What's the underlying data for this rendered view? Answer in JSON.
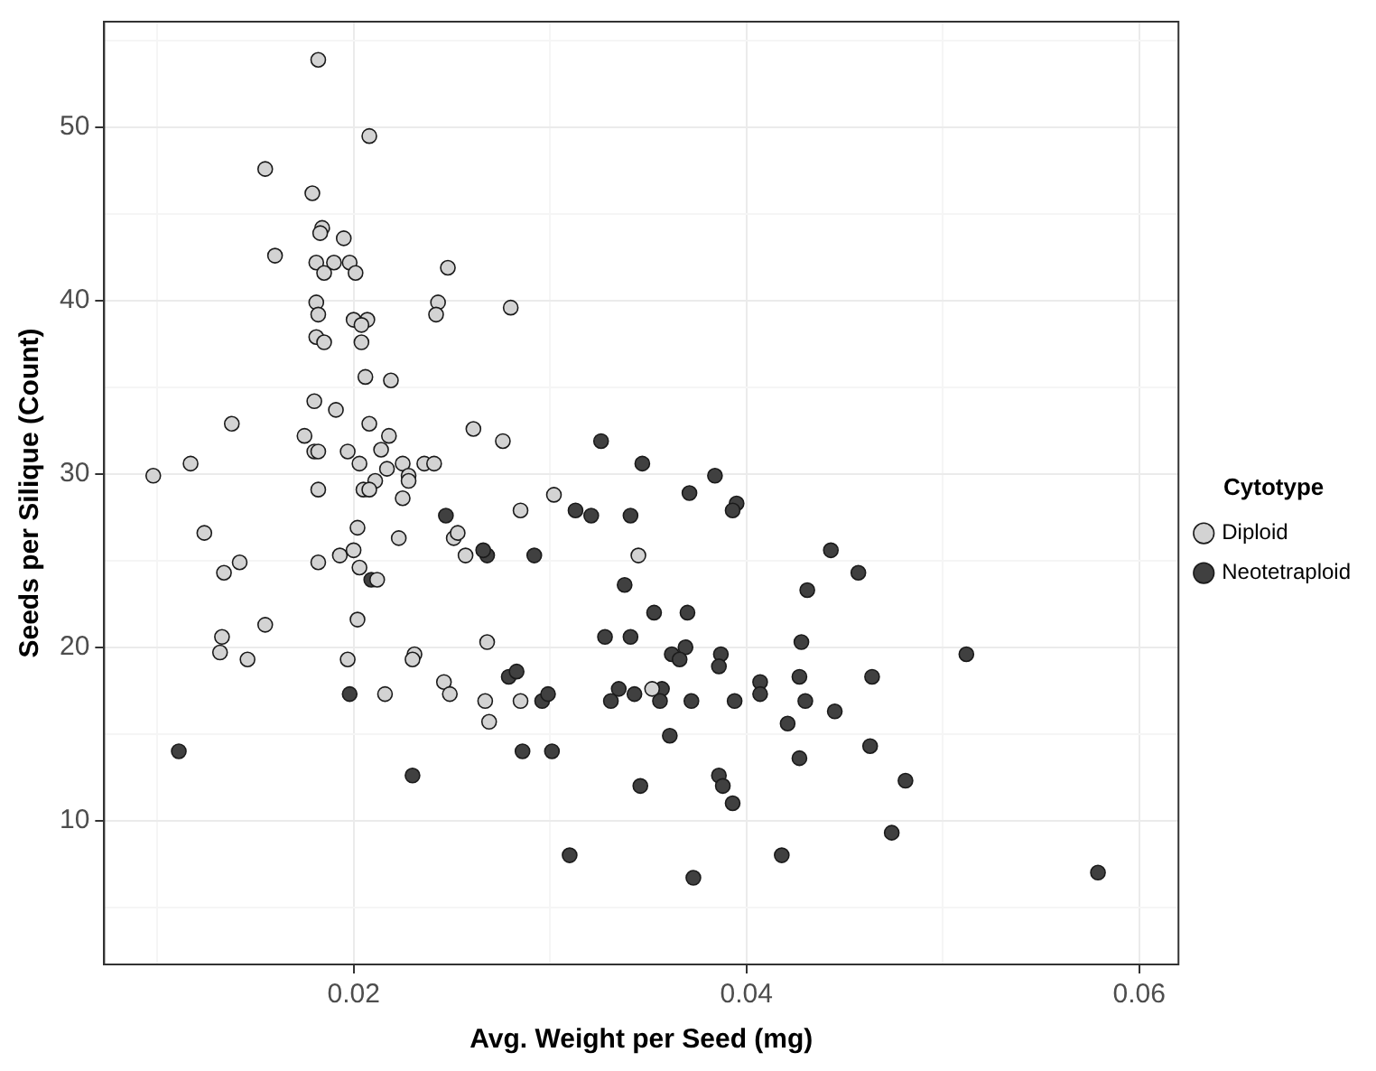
{
  "chart_data": {
    "type": "scatter",
    "xlabel": "Avg. Weight per Seed (mg)",
    "ylabel": "Seeds per Silique (Count)",
    "legend_title": "Cytotype",
    "legend": "right",
    "grid": true,
    "marker": "circle",
    "xlim": [
      0.0073,
      0.062
    ],
    "xticks": [
      {
        "value": 0.01,
        "label": null
      },
      0.02,
      {
        "value": 0.03,
        "label": null
      },
      0.04,
      {
        "value": 0.05,
        "label": null
      },
      0.06
    ],
    "ylim": [
      1.7,
      56.1
    ],
    "yticks": [
      {
        "value": 5,
        "label": null
      },
      10,
      {
        "value": 15,
        "label": null
      },
      20,
      {
        "value": 25,
        "label": null
      },
      30,
      {
        "value": 35,
        "label": null
      },
      40,
      {
        "value": 45,
        "label": null
      },
      50,
      {
        "value": 55,
        "label": null
      }
    ],
    "series": [
      {
        "name": "Diploid",
        "color": "#d3d3d3",
        "x": [
          0.0182,
          0.0208,
          0.0155,
          0.0179,
          0.0184,
          0.0183,
          0.0195,
          0.016,
          0.0181,
          0.019,
          0.0198,
          0.0185,
          0.0201,
          0.0248,
          0.0181,
          0.0243,
          0.0242,
          0.028,
          0.0182,
          0.02,
          0.0207,
          0.0204,
          0.0181,
          0.0185,
          0.0204,
          0.0206,
          0.0219,
          0.018,
          0.0191,
          0.0138,
          0.0208,
          0.0261,
          0.0175,
          0.0218,
          0.0276,
          0.018,
          0.0182,
          0.0197,
          0.0214,
          0.0203,
          0.0117,
          0.0225,
          0.0236,
          0.0241,
          0.0098,
          0.0217,
          0.0228,
          0.0228,
          0.0211,
          0.0302,
          0.0182,
          0.0205,
          0.0208,
          0.0225,
          0.0285,
          0.0124,
          0.0202,
          0.0223,
          0.0251,
          0.0253,
          0.0257,
          0.0142,
          0.0134,
          0.0182,
          0.0193,
          0.02,
          0.0203,
          0.0212,
          0.0202,
          0.0155,
          0.0133,
          0.0132,
          0.0146,
          0.0197,
          0.0231,
          0.023,
          0.0268,
          0.0246,
          0.0249,
          0.0216,
          0.0267,
          0.0285,
          0.0269,
          0.0345,
          0.0352
        ],
        "values": [
          53.9,
          49.5,
          47.6,
          46.2,
          44.2,
          43.9,
          43.6,
          42.6,
          42.2,
          42.2,
          42.2,
          41.6,
          41.6,
          41.9,
          39.9,
          39.9,
          39.2,
          39.6,
          39.2,
          38.9,
          38.9,
          38.6,
          37.9,
          37.6,
          37.6,
          35.6,
          35.4,
          34.2,
          33.7,
          32.9,
          32.9,
          32.6,
          32.2,
          32.2,
          31.9,
          31.3,
          31.3,
          31.3,
          31.4,
          30.6,
          30.6,
          30.6,
          30.6,
          30.6,
          29.9,
          30.3,
          29.9,
          29.6,
          29.6,
          28.8,
          29.1,
          29.1,
          29.1,
          28.6,
          27.9,
          26.6,
          26.9,
          26.3,
          26.3,
          26.6,
          25.3,
          24.9,
          24.3,
          24.9,
          25.3,
          25.6,
          24.6,
          23.9,
          21.6,
          21.3,
          20.6,
          19.7,
          19.3,
          19.3,
          19.6,
          19.3,
          20.3,
          18.0,
          17.3,
          17.3,
          16.9,
          16.9,
          15.7,
          25.3,
          17.6
        ]
      },
      {
        "name": "Neotetraploid",
        "color": "#404040",
        "x": [
          0.0209,
          0.0268,
          0.0266,
          0.0292,
          0.0247,
          0.0198,
          0.0279,
          0.0283,
          0.0296,
          0.0299,
          0.0111,
          0.0286,
          0.0301,
          0.023,
          0.0357,
          0.0326,
          0.0347,
          0.0384,
          0.0371,
          0.0395,
          0.0393,
          0.0313,
          0.0321,
          0.0341,
          0.0443,
          0.0457,
          0.0431,
          0.0338,
          0.0353,
          0.037,
          0.0328,
          0.0341,
          0.0428,
          0.0512,
          0.0362,
          0.0369,
          0.0366,
          0.0387,
          0.0386,
          0.0427,
          0.0464,
          0.0407,
          0.0407,
          0.043,
          0.0335,
          0.0331,
          0.0343,
          0.0356,
          0.0372,
          0.0394,
          0.0445,
          0.0421,
          0.0361,
          0.0427,
          0.0463,
          0.0346,
          0.0386,
          0.0388,
          0.0393,
          0.0481,
          0.0474,
          0.031,
          0.0418,
          0.0373,
          0.0579
        ],
        "values": [
          23.9,
          25.3,
          25.6,
          25.3,
          27.6,
          17.3,
          18.3,
          18.6,
          16.9,
          17.3,
          14.0,
          14.0,
          14.0,
          12.6,
          17.6,
          31.9,
          30.6,
          29.9,
          28.9,
          28.3,
          27.9,
          27.9,
          27.6,
          27.6,
          25.6,
          24.3,
          23.3,
          23.6,
          22.0,
          22.0,
          20.6,
          20.6,
          20.3,
          19.6,
          19.6,
          20.0,
          19.3,
          19.6,
          18.9,
          18.3,
          18.3,
          18.0,
          17.3,
          16.9,
          17.6,
          16.9,
          17.3,
          16.9,
          16.9,
          16.9,
          16.3,
          15.6,
          14.9,
          13.6,
          14.3,
          12.0,
          12.6,
          12.0,
          11.0,
          12.3,
          9.3,
          8.0,
          8.0,
          6.7,
          7.0
        ]
      }
    ]
  }
}
